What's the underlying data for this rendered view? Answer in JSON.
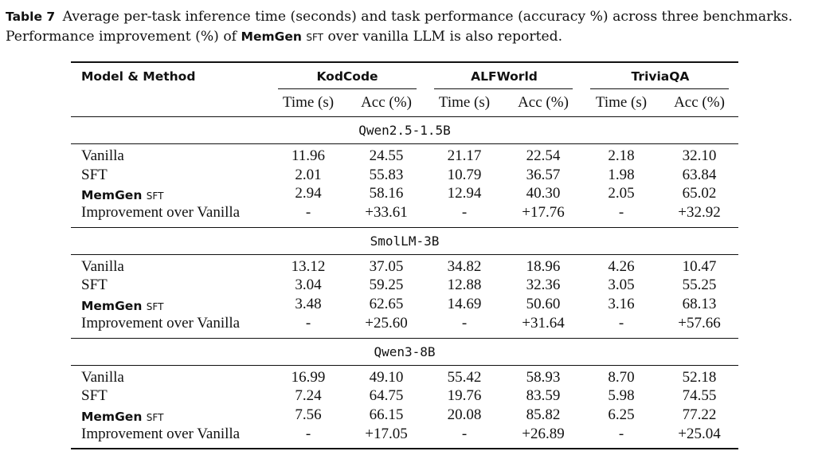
{
  "caption": {
    "label": "Table 7",
    "line1": "Average per-task inference time (seconds) and task performance (accuracy %) across three benchmarks.",
    "line2_pre": "Performance improvement (%) of",
    "line2_method": "MemGen",
    "line2_sub": "SFT",
    "line2_post": "over vanilla LLM is also reported."
  },
  "header": {
    "model_method": "Model & Method",
    "groups": [
      "KodCode",
      "ALFWorld",
      "TriviaQA"
    ],
    "time": "Time (s)",
    "acc": "Acc (%)"
  },
  "sections": [
    {
      "model": "Qwen2.5-1.5B",
      "rows": [
        {
          "method": "Vanilla",
          "values": [
            "11.96",
            "24.55",
            "21.17",
            "22.54",
            "2.18",
            "32.10"
          ]
        },
        {
          "method": "SFT",
          "values": [
            "2.01",
            "55.83",
            "10.79",
            "36.57",
            "1.98",
            "63.84"
          ]
        },
        {
          "method": "MemGen",
          "sub": "SFT",
          "values": [
            "2.94",
            "58.16",
            "12.94",
            "40.30",
            "2.05",
            "65.02"
          ]
        },
        {
          "method": "Improvement over Vanilla",
          "values": [
            "-",
            "+33.61",
            "-",
            "+17.76",
            "-",
            "+32.92"
          ]
        }
      ]
    },
    {
      "model": "SmolLM-3B",
      "rows": [
        {
          "method": "Vanilla",
          "values": [
            "13.12",
            "37.05",
            "34.82",
            "18.96",
            "4.26",
            "10.47"
          ]
        },
        {
          "method": "SFT",
          "values": [
            "3.04",
            "59.25",
            "12.88",
            "32.36",
            "3.05",
            "55.25"
          ]
        },
        {
          "method": "MemGen",
          "sub": "SFT",
          "values": [
            "3.48",
            "62.65",
            "14.69",
            "50.60",
            "3.16",
            "68.13"
          ]
        },
        {
          "method": "Improvement over Vanilla",
          "values": [
            "-",
            "+25.60",
            "-",
            "+31.64",
            "-",
            "+57.66"
          ]
        }
      ]
    },
    {
      "model": "Qwen3-8B",
      "rows": [
        {
          "method": "Vanilla",
          "values": [
            "16.99",
            "49.10",
            "55.42",
            "58.93",
            "8.70",
            "52.18"
          ]
        },
        {
          "method": "SFT",
          "values": [
            "7.24",
            "64.75",
            "19.76",
            "83.59",
            "5.98",
            "74.55"
          ]
        },
        {
          "method": "MemGen",
          "sub": "SFT",
          "values": [
            "7.56",
            "66.15",
            "20.08",
            "85.82",
            "6.25",
            "77.22"
          ]
        },
        {
          "method": "Improvement over Vanilla",
          "values": [
            "-",
            "+17.05",
            "-",
            "+26.89",
            "-",
            "+25.04"
          ]
        }
      ]
    }
  ]
}
